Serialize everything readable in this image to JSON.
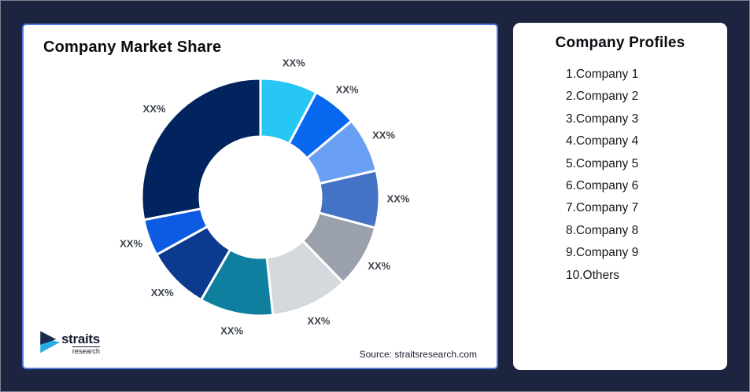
{
  "page": {
    "background": "#1C2440"
  },
  "left_card": {
    "title": "Company Market Share",
    "source": "Source: straitsresearch.com",
    "border_color": "#5478DF"
  },
  "chart_data": {
    "type": "donut",
    "title": "Company Market Share",
    "value_note": "percent labels masked as XX% in source image; value_deg is arc span in degrees estimated from pixels",
    "slices": [
      {
        "name": "Company 1",
        "label": "XX%",
        "value_deg": 28,
        "color": "#26C6F5"
      },
      {
        "name": "Company 2",
        "label": "XX%",
        "value_deg": 22,
        "color": "#0768EF"
      },
      {
        "name": "Company 3",
        "label": "XX%",
        "value_deg": 27,
        "color": "#6AA0F4"
      },
      {
        "name": "Company 4",
        "label": "XX%",
        "value_deg": 28,
        "color": "#4472C4"
      },
      {
        "name": "Company 5",
        "label": "XX%",
        "value_deg": 31,
        "color": "#9AA0AC"
      },
      {
        "name": "Company 6",
        "label": "XX%",
        "value_deg": 38,
        "color": "#D5D8DD"
      },
      {
        "name": "Company 7",
        "label": "XX%",
        "value_deg": 36,
        "color": "#0F7FA0"
      },
      {
        "name": "Company 8",
        "label": "XX%",
        "value_deg": 31,
        "color": "#0C3A8E"
      },
      {
        "name": "Company 9",
        "label": "XX%",
        "value_deg": 18,
        "color": "#0D5BE3"
      },
      {
        "name": "Others",
        "label": "XX%",
        "value_deg": 101,
        "color": "#02245E"
      }
    ],
    "label_color": "#3D434E",
    "legend": "none",
    "source": "Source: straitsresearch.com"
  },
  "right_card": {
    "title": "Company Profiles",
    "items": [
      "1.Company 1",
      "2.Company 2",
      "3.Company 3",
      "4.Company 4",
      "5.Company 5",
      "6.Company 6",
      "7.Company 7",
      "8.Company 8",
      "9.Company 9",
      "10.Others"
    ]
  },
  "logo": {
    "name": "straits",
    "sub": "research",
    "navy": "#1B2A4E",
    "cyan": "#29AEE4"
  }
}
